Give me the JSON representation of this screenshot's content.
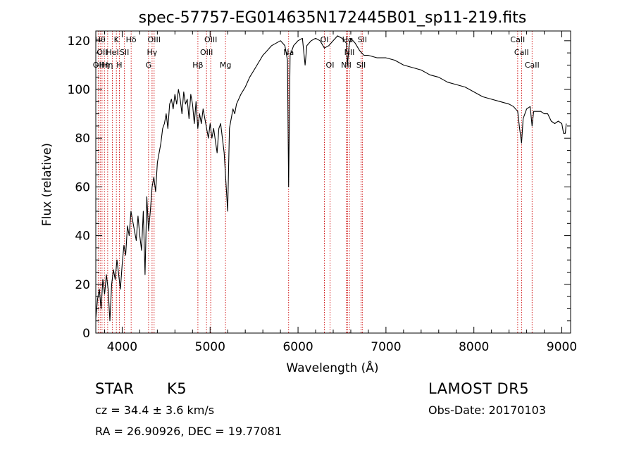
{
  "chart_data": {
    "type": "line",
    "title": "spec-57757-EG014635N172445B01_sp11-219.fits",
    "xlabel": "Wavelength (Å)",
    "ylabel": "Flux (relative)",
    "xlim": [
      3700,
      9100
    ],
    "ylim": [
      0,
      124
    ],
    "x_ticks": [
      4000,
      5000,
      6000,
      7000,
      8000,
      9000
    ],
    "y_ticks": [
      0,
      20,
      40,
      60,
      80,
      100,
      120
    ],
    "grid": false,
    "line_color": "#000000",
    "marker_color": "#cc0000",
    "series": [
      {
        "x": [
          3700,
          3720,
          3740,
          3760,
          3780,
          3800,
          3820,
          3840,
          3860,
          3880,
          3900,
          3920,
          3940,
          3960,
          3980,
          4000,
          4020,
          4040,
          4060,
          4080,
          4100,
          4120,
          4140,
          4160,
          4180,
          4200,
          4220,
          4240,
          4260,
          4280,
          4300,
          4320,
          4340,
          4360,
          4380,
          4400,
          4420,
          4440,
          4460,
          4480,
          4500,
          4520,
          4540,
          4560,
          4580,
          4600,
          4620,
          4640,
          4660,
          4680,
          4700,
          4720,
          4740,
          4760,
          4780,
          4800,
          4820,
          4840,
          4860,
          4880,
          4900,
          4920,
          4940,
          4960,
          4980,
          5000,
          5020,
          5040,
          5060,
          5080,
          5100,
          5120,
          5140,
          5160,
          5180,
          5200,
          5220,
          5240,
          5260,
          5280,
          5300,
          5350,
          5400,
          5450,
          5500,
          5550,
          5600,
          5650,
          5700,
          5750,
          5800,
          5850,
          5880,
          5893,
          5910,
          5950,
          6000,
          6050,
          6080,
          6100,
          6150,
          6200,
          6250,
          6300,
          6350,
          6400,
          6450,
          6500,
          6550,
          6563,
          6580,
          6600,
          6650,
          6700,
          6750,
          6800,
          6900,
          7000,
          7100,
          7200,
          7300,
          7400,
          7500,
          7600,
          7700,
          7800,
          7900,
          8000,
          8100,
          8200,
          8300,
          8400,
          8450,
          8498,
          8520,
          8542,
          8560,
          8600,
          8640,
          8662,
          8680,
          8720,
          8760,
          8800,
          8840,
          8880,
          8920,
          8960,
          9000,
          9020,
          9040,
          9050
        ],
        "y": [
          6,
          14,
          18,
          10,
          22,
          16,
          24,
          18,
          5,
          20,
          26,
          22,
          30,
          24,
          18,
          28,
          36,
          32,
          44,
          40,
          50,
          46,
          42,
          38,
          48,
          40,
          34,
          50,
          24,
          56,
          42,
          50,
          60,
          64,
          58,
          70,
          74,
          78,
          84,
          86,
          90,
          84,
          94,
          96,
          92,
          98,
          94,
          100,
          96,
          90,
          99,
          94,
          96,
          88,
          98,
          94,
          86,
          95,
          84,
          90,
          86,
          92,
          88,
          84,
          80,
          86,
          80,
          84,
          79,
          74,
          84,
          86,
          80,
          74,
          62,
          50,
          84,
          88,
          92,
          90,
          94,
          98,
          101,
          105,
          108,
          111,
          114,
          116,
          118,
          119,
          120,
          118,
          112,
          60,
          114,
          118,
          120,
          121,
          110,
          118,
          120,
          121,
          120,
          117,
          118,
          120,
          122,
          121,
          119,
          110,
          118,
          121,
          119,
          116,
          114,
          114,
          113,
          113,
          112,
          110,
          109,
          108,
          106,
          105,
          103,
          102,
          101,
          99,
          97,
          96,
          95,
          94,
          93,
          91,
          84,
          78,
          88,
          92,
          93,
          85,
          91,
          91,
          91,
          90,
          90,
          87,
          86,
          87,
          86,
          82,
          82,
          86
        ]
      }
    ],
    "line_markers": [
      {
        "x": 3727,
        "label": "OII",
        "row": 2
      },
      {
        "x": 3750,
        "label": "Hθ",
        "row": 0
      },
      {
        "x": 3771,
        "label": "OII",
        "row": 1
      },
      {
        "x": 3798,
        "label": "Hη",
        "row": 2
      },
      {
        "x": 3835,
        "label": "Hη",
        "row": 2
      },
      {
        "x": 3889,
        "label": "HeI",
        "row": 1
      },
      {
        "x": 3934,
        "label": "K",
        "row": 0
      },
      {
        "x": 3968,
        "label": "H",
        "row": 2
      },
      {
        "x": 4026,
        "label": "SII",
        "row": 1
      },
      {
        "x": 4102,
        "label": "Hδ",
        "row": 0
      },
      {
        "x": 4300,
        "label": "G",
        "row": 2
      },
      {
        "x": 4340,
        "label": "Hγ",
        "row": 1
      },
      {
        "x": 4363,
        "label": "OIII",
        "row": 0
      },
      {
        "x": 4861,
        "label": "Hβ",
        "row": 2
      },
      {
        "x": 4959,
        "label": "OIII",
        "row": 1
      },
      {
        "x": 5007,
        "label": "OIII",
        "row": 0
      },
      {
        "x": 5175,
        "label": "Mg",
        "row": 2
      },
      {
        "x": 5893,
        "label": "Na",
        "row": 1
      },
      {
        "x": 6300,
        "label": "OI",
        "row": 0
      },
      {
        "x": 6364,
        "label": "OI",
        "row": 2
      },
      {
        "x": 6548,
        "label": "NII",
        "row": 2
      },
      {
        "x": 6563,
        "label": "Hα",
        "row": 0
      },
      {
        "x": 6584,
        "label": "NII",
        "row": 1
      },
      {
        "x": 6717,
        "label": "SII",
        "row": 2
      },
      {
        "x": 6731,
        "label": "SII",
        "row": 0
      },
      {
        "x": 8498,
        "label": "CaII",
        "row": 0
      },
      {
        "x": 8542,
        "label": "CaII",
        "row": 1
      },
      {
        "x": 8662,
        "label": "CaII",
        "row": 2
      }
    ]
  },
  "info": {
    "object_class": "STAR",
    "subclass": "K5",
    "survey": "LAMOST DR5",
    "velocity": "cz = 34.4 ± 3.6 km/s",
    "obs_date": "Obs-Date: 20170103",
    "coords": "RA =  26.90926, DEC =  19.77081"
  }
}
